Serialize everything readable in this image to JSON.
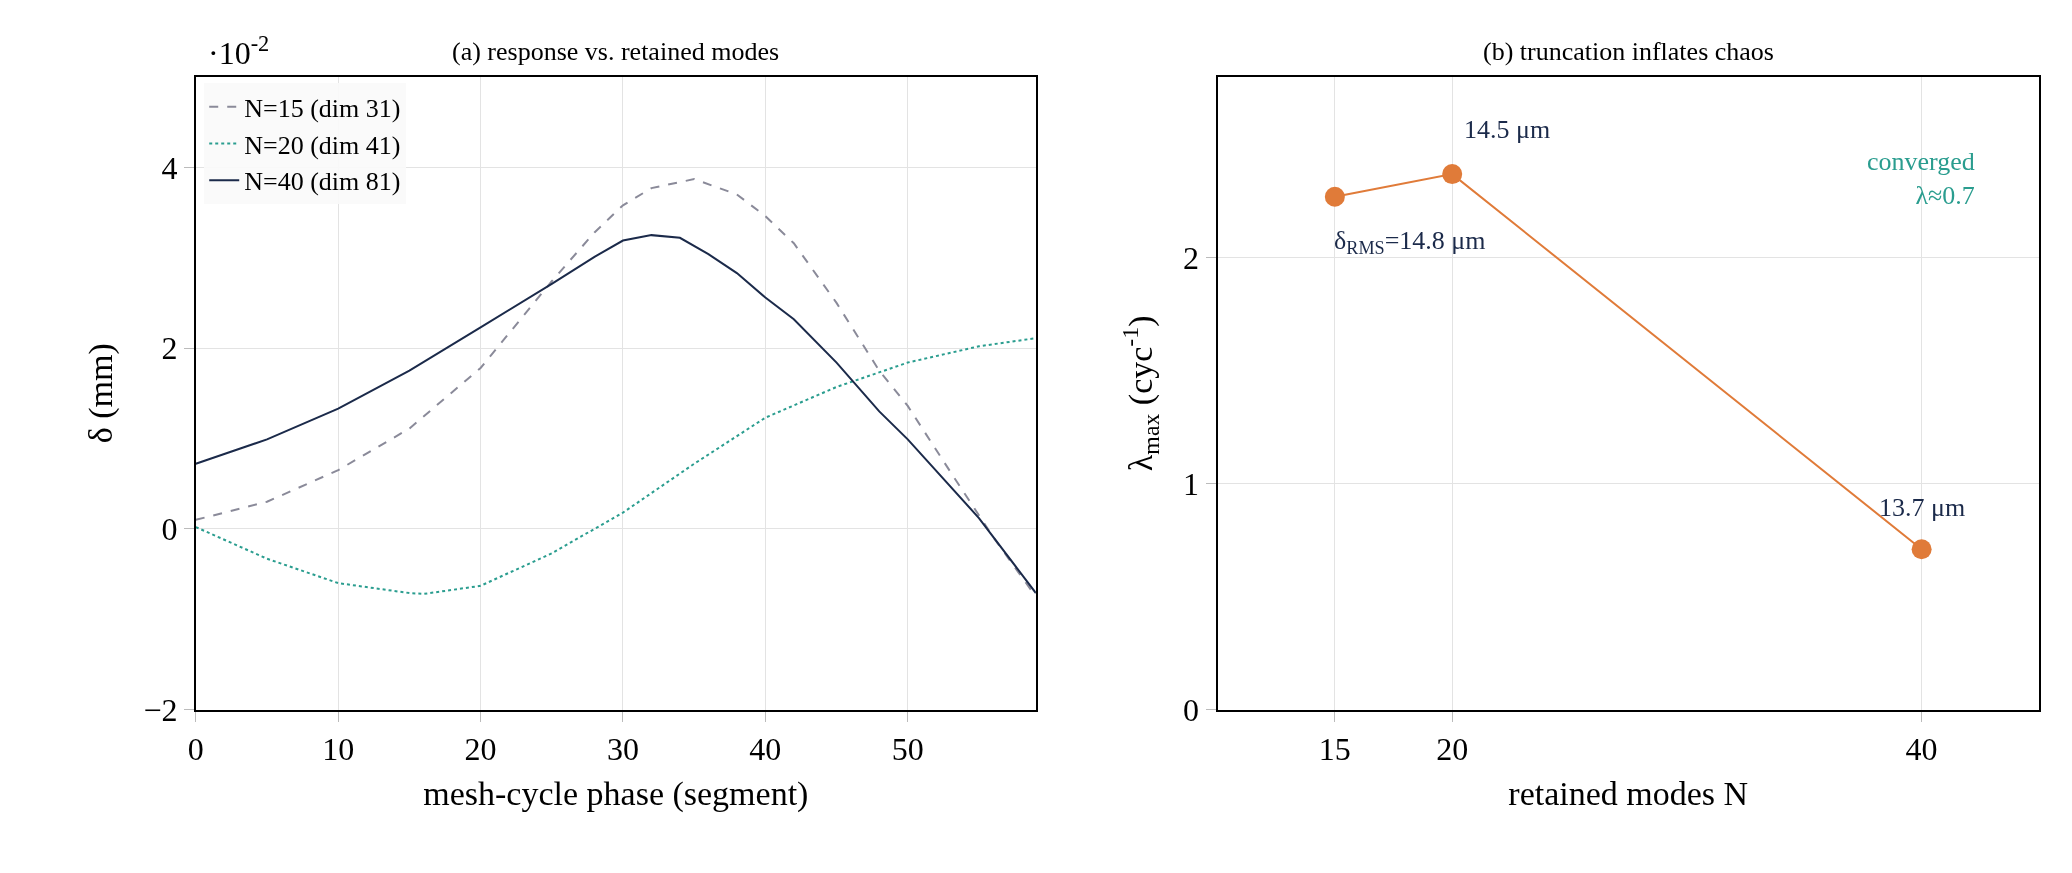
{
  "chart_data": [
    {
      "type": "line",
      "title": "(a) response vs. retained modes",
      "xlabel": "mesh-cycle phase (segment)",
      "ylabel": "δ (mm)",
      "annotations": [
        "·10$^{-2}$"
      ],
      "xlim": [
        0,
        59
      ],
      "xticks": [
        0,
        10,
        20,
        30,
        40,
        50
      ],
      "ylim": [
        -2,
        5
      ],
      "yticks": [
        {
          "value": -2,
          "label": "−2"
        },
        0,
        2,
        4
      ],
      "grid": true,
      "legend": "top left",
      "marker": "none",
      "x": [
        0,
        5,
        10,
        15,
        20,
        25,
        28,
        30,
        32,
        35,
        38,
        40,
        42,
        45,
        48,
        50,
        53,
        56,
        59
      ],
      "series": [
        {
          "name": "N=15 (dim 31)",
          "color": "#8a8a99",
          "line_style": "dashed",
          "values": [
            0.1,
            0.3,
            0.65,
            1.11,
            1.78,
            2.74,
            3.28,
            3.58,
            3.77,
            3.87,
            3.7,
            3.46,
            3.16,
            2.5,
            1.75,
            1.36,
            0.63,
            -0.09,
            -0.75
          ]
        },
        {
          "name": "N=20 (dim 41)",
          "color": "#2a9d8f",
          "line_style": "dotted",
          "x": [
            0,
            5,
            10,
            15,
            16,
            20,
            25,
            30,
            35,
            40,
            45,
            50,
            55,
            59
          ],
          "values": [
            0.02,
            -0.33,
            -0.6,
            -0.71,
            -0.72,
            -0.63,
            -0.27,
            0.18,
            0.72,
            1.23,
            1.57,
            1.84,
            2.02,
            2.11
          ]
        },
        {
          "name": "N=40 (dim 81)",
          "color": "#1b2a4a",
          "line_style": "solid",
          "x": [
            0,
            5,
            10,
            15,
            20,
            25,
            28,
            30,
            32,
            34,
            36,
            38,
            40,
            42,
            45,
            48,
            50,
            55,
            59
          ],
          "values": [
            0.72,
            0.99,
            1.33,
            1.75,
            2.23,
            2.71,
            3.01,
            3.19,
            3.25,
            3.22,
            3.04,
            2.83,
            2.56,
            2.32,
            1.84,
            1.3,
            0.99,
            0.12,
            -0.71
          ]
        }
      ]
    },
    {
      "type": "line",
      "title": "(b) truncation inflates chaos",
      "xlabel": "retained modes N",
      "ylabel": "λ$_{max}$ (cyc$^{-1}$)",
      "xlim": [
        10,
        45
      ],
      "xticks": [
        15,
        20,
        40
      ],
      "ylim": [
        0,
        2.8
      ],
      "yticks": [
        0,
        1,
        2
      ],
      "grid": true,
      "marker": "circle",
      "x": [
        15,
        20,
        40
      ],
      "series": [
        {
          "color": "#e07b39",
          "values": [
            2.27,
            2.37,
            0.71
          ]
        }
      ],
      "annotations": [
        {
          "text": "δ$_{RMS}$=14.8 μm",
          "x": 15,
          "y": 2.27
        },
        {
          "text": "14.5 μm",
          "x": 20,
          "y": 2.37
        },
        {
          "text": "13.7 μm",
          "x": 40,
          "y": 0.71
        },
        "converged\nλ≈0.7"
      ]
    }
  ]
}
